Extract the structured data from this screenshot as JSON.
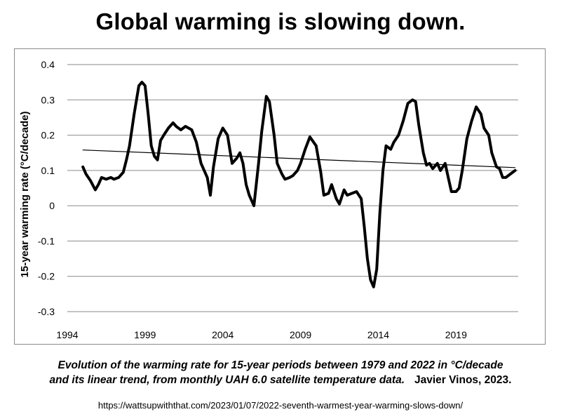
{
  "title": "Global warming is slowing down.",
  "caption": {
    "line1": "Evolution of the warming rate for 15-year periods between 1979 and 2022 in °C/decade",
    "line2": "and its linear trend, from monthly UAH 6.0 satellite temperature data.",
    "author": "Javier Vinos, 2023."
  },
  "source_url": "https://wattsupwiththat.com/2023/01/07/2022-seventh-warmest-year-warming-slows-down/",
  "chart_data": {
    "type": "line",
    "title": "",
    "xlabel": "",
    "ylabel": "15-year warming rate (°C/decade)",
    "xlim": [
      1994,
      2023
    ],
    "ylim": [
      -0.3,
      0.4
    ],
    "x_ticks": [
      1994,
      1999,
      2004,
      2009,
      2014,
      2019
    ],
    "y_ticks": [
      -0.3,
      -0.2,
      -0.1,
      0,
      0.1,
      0.2,
      0.3,
      0.4
    ],
    "y_tick_labels": [
      "-0.3",
      "-0.2",
      "-0.1",
      "0",
      "0.1",
      "0.2",
      "0.3",
      "0.4"
    ],
    "grid": "horizontal",
    "series": [
      {
        "name": "",
        "style": "thick",
        "x": [
          1995.0,
          1995.2,
          1995.5,
          1995.8,
          1996.0,
          1996.2,
          1996.5,
          1996.8,
          1997.0,
          1997.3,
          1997.6,
          1997.8,
          1998.0,
          1998.3,
          1998.6,
          1998.8,
          1999.0,
          1999.2,
          1999.4,
          1999.6,
          1999.8,
          2000.0,
          2000.2,
          2000.5,
          2000.8,
          2001.0,
          2001.3,
          2001.6,
          2002.0,
          2002.3,
          2002.6,
          2003.0,
          2003.2,
          2003.4,
          2003.7,
          2004.0,
          2004.3,
          2004.6,
          2004.9,
          2005.1,
          2005.3,
          2005.5,
          2005.7,
          2006.0,
          2006.3,
          2006.5,
          2006.8,
          2007.0,
          2007.3,
          2007.5,
          2007.8,
          2008.0,
          2008.3,
          2008.5,
          2008.8,
          2009.0,
          2009.3,
          2009.6,
          2010.0,
          2010.3,
          2010.5,
          2010.8,
          2011.0,
          2011.3,
          2011.5,
          2011.8,
          2012.0,
          2012.3,
          2012.6,
          2012.9,
          2013.1,
          2013.3,
          2013.5,
          2013.7,
          2013.9,
          2014.1,
          2014.3,
          2014.5,
          2014.8,
          2015.0,
          2015.3,
          2015.6,
          2015.9,
          2016.2,
          2016.4,
          2016.6,
          2016.9,
          2017.1,
          2017.3,
          2017.5,
          2017.8,
          2018.0,
          2018.3,
          2018.5,
          2018.7,
          2019.0,
          2019.2,
          2019.4,
          2019.7,
          2020.0,
          2020.3,
          2020.6,
          2020.8,
          2021.1,
          2021.3,
          2021.6,
          2021.8,
          2022.0,
          2022.2,
          2022.5,
          2022.8
        ],
        "y": [
          0.11,
          0.09,
          0.07,
          0.045,
          0.06,
          0.08,
          0.075,
          0.08,
          0.075,
          0.08,
          0.095,
          0.13,
          0.17,
          0.26,
          0.34,
          0.35,
          0.34,
          0.26,
          0.17,
          0.14,
          0.13,
          0.185,
          0.2,
          0.22,
          0.235,
          0.225,
          0.215,
          0.225,
          0.215,
          0.18,
          0.12,
          0.08,
          0.03,
          0.11,
          0.19,
          0.22,
          0.2,
          0.12,
          0.135,
          0.15,
          0.12,
          0.06,
          0.03,
          0.0,
          0.12,
          0.21,
          0.31,
          0.295,
          0.2,
          0.12,
          0.09,
          0.075,
          0.08,
          0.085,
          0.1,
          0.12,
          0.16,
          0.195,
          0.17,
          0.095,
          0.03,
          0.035,
          0.06,
          0.02,
          0.005,
          0.045,
          0.03,
          0.035,
          0.04,
          0.02,
          -0.06,
          -0.15,
          -0.21,
          -0.23,
          -0.18,
          -0.02,
          0.1,
          0.17,
          0.16,
          0.18,
          0.2,
          0.24,
          0.29,
          0.3,
          0.295,
          0.23,
          0.15,
          0.115,
          0.12,
          0.105,
          0.12,
          0.1,
          0.12,
          0.08,
          0.04,
          0.04,
          0.05,
          0.1,
          0.19,
          0.24,
          0.28,
          0.26,
          0.22,
          0.2,
          0.15,
          0.11,
          0.105,
          0.08,
          0.08,
          0.09,
          0.1
        ]
      },
      {
        "name": "",
        "style": "thin",
        "x": [
          1995.0,
          2022.8
        ],
        "y": [
          0.158,
          0.108
        ]
      }
    ]
  }
}
